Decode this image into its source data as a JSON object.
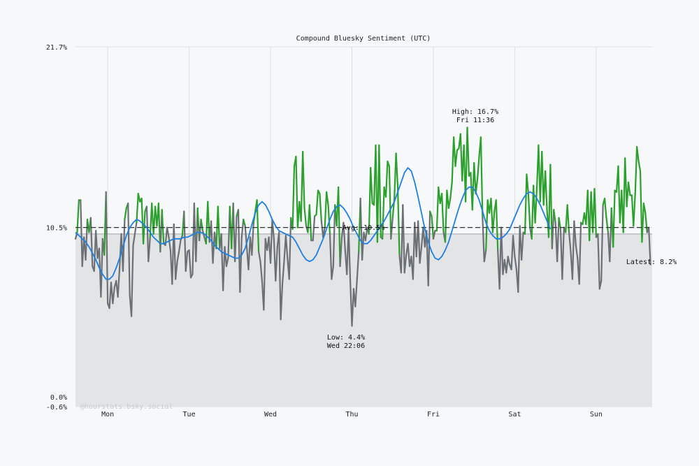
{
  "chart_data": {
    "type": "line",
    "title": "Compound Bluesky Sentiment (UTC)",
    "watermark": "@hourstats.bsky.social",
    "xlabel": "",
    "ylabel": "",
    "x_range_hours": [
      -6.5,
      163.5
    ],
    "ylim": [
      -0.6,
      21.7
    ],
    "y_ticks": [
      {
        "value": 21.7,
        "label": "21.7%"
      },
      {
        "value": 10.5,
        "label": "10.5%"
      },
      {
        "value": 0.0,
        "label": "0.0%"
      },
      {
        "value": -0.6,
        "label": "-0.6%"
      }
    ],
    "x_ticks": [
      {
        "hour": 3,
        "label": "Mon"
      },
      {
        "hour": 27,
        "label": "Tue"
      },
      {
        "hour": 51,
        "label": "Wed"
      },
      {
        "hour": 75,
        "label": "Thu"
      },
      {
        "hour": 99,
        "label": "Fri"
      },
      {
        "hour": 123,
        "label": "Sat"
      },
      {
        "hour": 147,
        "label": "Sun"
      }
    ],
    "average": {
      "value": 10.5,
      "label": "Avg: 10.5%"
    },
    "reference_value": 10.1,
    "low": {
      "line1": "Low: 4.4%",
      "line2": "Wed 22:06",
      "hour": 73.9,
      "value": 4.4
    },
    "high": {
      "line1": "High: 16.7%",
      "line2": "Fri 11:36",
      "hour": 110.6,
      "value": 16.7
    },
    "latest": {
      "label": "Latest: 8.2%",
      "value": 8.2
    },
    "colors": {
      "above": "#2ca02c",
      "below": "#6b7075",
      "trend": "#1f7fe0",
      "fill": "#e3e4e6",
      "avg_line": "#333333",
      "grid": "#dcdfe3",
      "background": "#f6f8fa"
    },
    "series": [
      {
        "name": "Sentiment",
        "x_step_hours": 0.5,
        "x_start_hour": -6.5,
        "values": [
          9.8,
          10.2,
          12.2,
          12.2,
          8.1,
          9.9,
          8.5,
          11.0,
          10.2,
          11.1,
          8.1,
          7.8,
          10.3,
          8.6,
          9.2,
          6.2,
          9.8,
          8.8,
          12.7,
          5.8,
          5.5,
          7.1,
          5.8,
          6.8,
          7.2,
          6.2,
          8.0,
          10.1,
          7.8,
          11.0,
          11.7,
          12.0,
          6.3,
          5.0,
          9.4,
          10.1,
          10.8,
          12.6,
          12.1,
          12.3,
          9.5,
          11.5,
          11.8,
          8.4,
          9.9,
          12.0,
          10.1,
          11.8,
          10.6,
          12.0,
          9.0,
          11.6,
          9.5,
          9.4,
          10.5,
          9.9,
          9.1,
          7.0,
          10.7,
          7.3,
          8.4,
          9.0,
          9.7,
          10.0,
          11.5,
          7.8,
          9.0,
          9.1,
          7.4,
          7.6,
          12.0,
          8.4,
          11.7,
          9.7,
          11.0,
          10.3,
          9.9,
          9.5,
          12.1,
          9.6,
          10.9,
          8.3,
          10.2,
          9.2,
          11.8,
          9.2,
          10.1,
          6.6,
          9.3,
          8.1,
          8.6,
          11.8,
          9.2,
          12.0,
          8.4,
          11.2,
          11.6,
          6.5,
          9.9,
          11.0,
          10.6,
          9.3,
          7.9,
          9.9,
          8.8,
          10.8,
          11.5,
          12.2,
          9.0,
          8.4,
          7.2,
          5.4,
          9.8,
          9.1,
          9.9,
          8.3,
          11.0,
          9.8,
          7.2,
          9.3,
          10.2,
          4.8,
          7.0,
          8.4,
          10.0,
          8.6,
          7.3,
          11.1,
          10.4,
          14.3,
          14.9,
          10.5,
          12.1,
          10.9,
          15.2,
          11.7,
          10.6,
          10.2,
          11.9,
          9.7,
          9.7,
          11.2,
          11.3,
          12.8,
          12.6,
          10.9,
          9.9,
          10.5,
          12.7,
          11.9,
          10.1,
          7.3,
          8.1,
          11.9,
          10.6,
          13.0,
          8.1,
          9.9,
          10.8,
          9.1,
          7.6,
          10.5,
          7.2,
          4.4,
          6.7,
          5.6,
          7.3,
          9.0,
          12.3,
          8.5,
          10.2,
          9.7,
          10.5,
          10.1,
          14.2,
          12.0,
          11.9,
          15.6,
          9.6,
          15.6,
          9.9,
          9.8,
          13.0,
          12.4,
          14.6,
          14.3,
          9.8,
          11.1,
          12.3,
          15.1,
          13.0,
          8.8,
          7.7,
          11.9,
          7.7,
          8.8,
          9.5,
          8.1,
          8.7,
          7.3,
          10.8,
          8.7,
          10.9,
          8.3,
          9.3,
          10.5,
          9.3,
          10.3,
          6.9,
          11.5,
          11.2,
          9.8,
          10.3,
          10.3,
          13.0,
          12.0,
          12.6,
          10.2,
          9.6,
          12.8,
          11.7,
          12.3,
          13.3,
          16.1,
          14.3,
          15.3,
          15.4,
          16.3,
          13.4,
          15.6,
          12.1,
          16.7,
          13.7,
          13.9,
          11.6,
          14.5,
          12.6,
          13.5,
          14.9,
          16.1,
          11.1,
          8.4,
          9.1,
          12.2,
          11.4,
          12.3,
          10.2,
          11.5,
          12.2,
          9.1,
          6.7,
          10.5,
          7.6,
          8.5,
          7.7,
          8.7,
          8.2,
          7.9,
          10.0,
          8.7,
          7.9,
          6.5,
          10.6,
          8.5,
          10.2,
          10.1,
          13.8,
          12.6,
          10.5,
          9.8,
          13.1,
          10.8,
          12.9,
          15.6,
          12.1,
          15.2,
          11.9,
          14.0,
          11.6,
          9.9,
          14.4,
          9.2,
          11.6,
          10.8,
          8.4,
          11.1,
          10.4,
          7.3,
          10.5,
          10.2,
          11.9,
          10.2,
          9.0,
          7.3,
          10.9,
          9.4,
          8.6,
          7.0,
          10.8,
          10.7,
          11.4,
          10.7,
          12.8,
          9.7,
          12.7,
          10.2,
          12.9,
          9.9,
          10.1,
          6.7,
          7.2,
          11.9,
          12.3,
          11.1,
          10.2,
          8.4,
          11.7,
          9.3,
          12.8,
          12.7,
          14.3,
          10.8,
          12.8,
          10.2,
          14.8,
          11.8,
          13.3,
          12.5,
          12.5,
          10.6,
          12.6,
          15.5,
          14.6,
          14.0,
          9.6,
          12.0,
          11.4,
          10.2,
          10.5,
          8.2
        ]
      },
      {
        "name": "Trend",
        "x_step_hours": 1,
        "x_start_hour": -6.5,
        "values": [
          10.2,
          10.0,
          9.8,
          9.6,
          9.3,
          8.9,
          8.5,
          8.0,
          7.6,
          7.3,
          7.3,
          7.5,
          8.0,
          8.6,
          9.3,
          10.0,
          10.5,
          10.8,
          11.0,
          10.9,
          10.7,
          10.5,
          10.2,
          9.9,
          9.7,
          9.5,
          9.5,
          9.6,
          9.7,
          9.8,
          9.8,
          9.8,
          9.9,
          9.9,
          10.0,
          10.1,
          10.2,
          10.2,
          10.1,
          9.9,
          9.7,
          9.4,
          9.2,
          9.0,
          8.9,
          8.8,
          8.7,
          8.6,
          8.6,
          8.8,
          9.2,
          9.9,
          10.7,
          11.4,
          11.9,
          12.1,
          11.9,
          11.5,
          11.0,
          10.6,
          10.3,
          10.2,
          10.1,
          10.0,
          9.9,
          9.6,
          9.2,
          8.8,
          8.5,
          8.4,
          8.5,
          8.8,
          9.3,
          9.8,
          10.4,
          11.0,
          11.5,
          11.8,
          11.9,
          11.7,
          11.4,
          11.0,
          10.5,
          10.1,
          9.7,
          9.5,
          9.5,
          9.7,
          10.0,
          10.3,
          10.6,
          10.9,
          11.3,
          11.7,
          12.1,
          12.7,
          13.3,
          13.9,
          14.2,
          14.0,
          13.3,
          12.4,
          11.4,
          10.4,
          9.6,
          9.0,
          8.6,
          8.5,
          8.7,
          9.1,
          9.6,
          10.3,
          11.0,
          11.7,
          12.3,
          12.8,
          13.0,
          13.0,
          12.7,
          12.2,
          11.5,
          10.8,
          10.3,
          10.0,
          9.8,
          9.8,
          9.9,
          10.1,
          10.4,
          10.9,
          11.4,
          11.9,
          12.3,
          12.6,
          12.7,
          12.6,
          12.3,
          11.9,
          11.4,
          10.9,
          10.4
        ]
      }
    ]
  }
}
